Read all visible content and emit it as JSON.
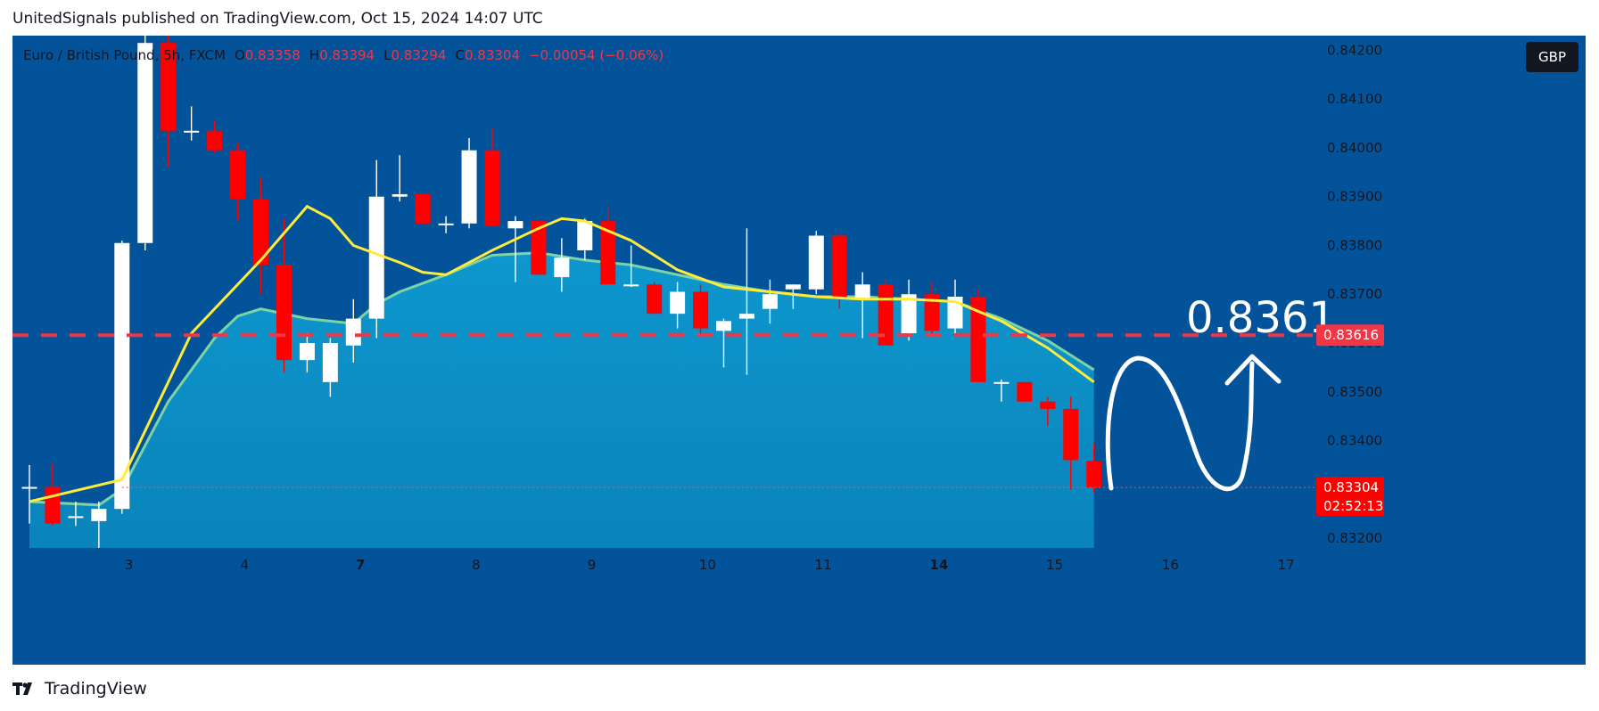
{
  "header": {
    "published_line": "UnitedSignals published on TradingView.com, Oct 15, 2024 14:07 UTC"
  },
  "legend": {
    "symbol": "Euro / British Pound, 5h, FXCM",
    "open_label": "O",
    "open_value": "0.83358",
    "high_label": "H",
    "high_value": "0.83394",
    "low_label": "L",
    "low_value": "0.83294",
    "close_label": "C",
    "close_value": "0.83304",
    "change": "−0.00054 (−0.06%)"
  },
  "currency_badge": "GBP",
  "annotation": {
    "target_text": "0.8361"
  },
  "price_tags": {
    "level_value": "0.83616",
    "last_value": "0.83304",
    "countdown": "02:52:13"
  },
  "colors": {
    "background": "#02539a",
    "up": "#ffffff",
    "down": "#ff0000",
    "ma_fast": "#ffeb3b",
    "ma_slow": "#7dd3a3",
    "fill_area": "#0a8bc0",
    "level_line": "#f23645"
  },
  "footer": {
    "brand": "TradingView",
    "logo_icon": "tradingview-logo-icon"
  },
  "chart_data": {
    "type": "candlestick",
    "ylim": [
      0.8318,
      0.8423
    ],
    "yticks": [
      0.832,
      0.833,
      0.834,
      0.835,
      0.836,
      0.837,
      0.838,
      0.839,
      0.84,
      0.841,
      0.842
    ],
    "ytick_labels": [
      "0.83200",
      "0.83300",
      "0.83400",
      "0.83500",
      "0.83600",
      "0.83700",
      "0.83800",
      "0.83900",
      "0.84000",
      "0.84100",
      "0.84200"
    ],
    "xticks": [
      {
        "label": "3",
        "index": 4.3,
        "bold": false
      },
      {
        "label": "4",
        "index": 9.3,
        "bold": false
      },
      {
        "label": "7",
        "index": 14.3,
        "bold": true
      },
      {
        "label": "8",
        "index": 19.3,
        "bold": false
      },
      {
        "label": "9",
        "index": 24.3,
        "bold": false
      },
      {
        "label": "10",
        "index": 29.3,
        "bold": false
      },
      {
        "label": "11",
        "index": 34.3,
        "bold": false
      },
      {
        "label": "14",
        "index": 39.3,
        "bold": true
      },
      {
        "label": "15",
        "index": 44.3,
        "bold": false
      },
      {
        "label": "16",
        "index": 49.3,
        "bold": false
      },
      {
        "label": "17",
        "index": 54.3,
        "bold": false
      }
    ],
    "candles": [
      {
        "o": 0.83305,
        "h": 0.8335,
        "l": 0.8323,
        "c": 0.83305
      },
      {
        "o": 0.83305,
        "h": 0.83355,
        "l": 0.83225,
        "c": 0.8323
      },
      {
        "o": 0.83245,
        "h": 0.83275,
        "l": 0.83225,
        "c": 0.83245
      },
      {
        "o": 0.83235,
        "h": 0.83275,
        "l": 0.8318,
        "c": 0.8326
      },
      {
        "o": 0.8326,
        "h": 0.8381,
        "l": 0.8325,
        "c": 0.83805
      },
      {
        "o": 0.83805,
        "h": 0.8427,
        "l": 0.8379,
        "c": 0.84215
      },
      {
        "o": 0.84215,
        "h": 0.8425,
        "l": 0.8396,
        "c": 0.84035
      },
      {
        "o": 0.84035,
        "h": 0.84085,
        "l": 0.84015,
        "c": 0.84035
      },
      {
        "o": 0.84035,
        "h": 0.84055,
        "l": 0.8399,
        "c": 0.83995
      },
      {
        "o": 0.83995,
        "h": 0.8401,
        "l": 0.8385,
        "c": 0.83895
      },
      {
        "o": 0.83895,
        "h": 0.8394,
        "l": 0.837,
        "c": 0.8376
      },
      {
        "o": 0.8376,
        "h": 0.83855,
        "l": 0.8354,
        "c": 0.83565
      },
      {
        "o": 0.83565,
        "h": 0.8362,
        "l": 0.8354,
        "c": 0.836
      },
      {
        "o": 0.8352,
        "h": 0.8361,
        "l": 0.8349,
        "c": 0.836
      },
      {
        "o": 0.83595,
        "h": 0.8369,
        "l": 0.8356,
        "c": 0.8365
      },
      {
        "o": 0.8365,
        "h": 0.83975,
        "l": 0.8361,
        "c": 0.839
      },
      {
        "o": 0.839,
        "h": 0.83985,
        "l": 0.8389,
        "c": 0.83905
      },
      {
        "o": 0.83905,
        "h": 0.83905,
        "l": 0.83845,
        "c": 0.83845
      },
      {
        "o": 0.83845,
        "h": 0.8386,
        "l": 0.83825,
        "c": 0.83845
      },
      {
        "o": 0.83845,
        "h": 0.8402,
        "l": 0.83835,
        "c": 0.83995
      },
      {
        "o": 0.83995,
        "h": 0.8404,
        "l": 0.83835,
        "c": 0.8384
      },
      {
        "o": 0.83835,
        "h": 0.8386,
        "l": 0.83725,
        "c": 0.8385
      },
      {
        "o": 0.8385,
        "h": 0.8385,
        "l": 0.8374,
        "c": 0.8374
      },
      {
        "o": 0.83735,
        "h": 0.83815,
        "l": 0.83705,
        "c": 0.83775
      },
      {
        "o": 0.8379,
        "h": 0.83855,
        "l": 0.8377,
        "c": 0.8385
      },
      {
        "o": 0.8385,
        "h": 0.8388,
        "l": 0.8372,
        "c": 0.8372
      },
      {
        "o": 0.8372,
        "h": 0.838,
        "l": 0.83715,
        "c": 0.8372
      },
      {
        "o": 0.8372,
        "h": 0.83725,
        "l": 0.8366,
        "c": 0.8366
      },
      {
        "o": 0.8366,
        "h": 0.83725,
        "l": 0.8363,
        "c": 0.83705
      },
      {
        "o": 0.83705,
        "h": 0.8372,
        "l": 0.8362,
        "c": 0.8363
      },
      {
        "o": 0.83625,
        "h": 0.8365,
        "l": 0.8355,
        "c": 0.83645
      },
      {
        "o": 0.8365,
        "h": 0.83835,
        "l": 0.83535,
        "c": 0.8366
      },
      {
        "o": 0.8367,
        "h": 0.8373,
        "l": 0.8364,
        "c": 0.837
      },
      {
        "o": 0.8371,
        "h": 0.8372,
        "l": 0.8367,
        "c": 0.8372
      },
      {
        "o": 0.8371,
        "h": 0.8383,
        "l": 0.837,
        "c": 0.8382
      },
      {
        "o": 0.8382,
        "h": 0.83825,
        "l": 0.8367,
        "c": 0.8369
      },
      {
        "o": 0.8369,
        "h": 0.83745,
        "l": 0.8361,
        "c": 0.8372
      },
      {
        "o": 0.8372,
        "h": 0.8373,
        "l": 0.83595,
        "c": 0.83595
      },
      {
        "o": 0.8362,
        "h": 0.8373,
        "l": 0.83605,
        "c": 0.837
      },
      {
        "o": 0.837,
        "h": 0.83725,
        "l": 0.83615,
        "c": 0.83625
      },
      {
        "o": 0.8363,
        "h": 0.8373,
        "l": 0.8362,
        "c": 0.83695
      },
      {
        "o": 0.83695,
        "h": 0.8371,
        "l": 0.8352,
        "c": 0.8352
      },
      {
        "o": 0.8352,
        "h": 0.83525,
        "l": 0.8348,
        "c": 0.8352
      },
      {
        "o": 0.8352,
        "h": 0.8352,
        "l": 0.8348,
        "c": 0.8348
      },
      {
        "o": 0.8348,
        "h": 0.8349,
        "l": 0.8343,
        "c": 0.83465
      },
      {
        "o": 0.83465,
        "h": 0.8349,
        "l": 0.833,
        "c": 0.8336
      },
      {
        "o": 0.83358,
        "h": 0.83394,
        "l": 0.83294,
        "c": 0.83304
      }
    ],
    "ma_fast": [
      {
        "i": 0,
        "v": 0.83275
      },
      {
        "i": 4,
        "v": 0.8332
      },
      {
        "i": 7,
        "v": 0.8362
      },
      {
        "i": 10,
        "v": 0.8377
      },
      {
        "i": 12,
        "v": 0.8388
      },
      {
        "i": 13,
        "v": 0.83855
      },
      {
        "i": 14,
        "v": 0.838
      },
      {
        "i": 16,
        "v": 0.83765
      },
      {
        "i": 17,
        "v": 0.83745
      },
      {
        "i": 18,
        "v": 0.8374
      },
      {
        "i": 20,
        "v": 0.8379
      },
      {
        "i": 22,
        "v": 0.83835
      },
      {
        "i": 23,
        "v": 0.83855
      },
      {
        "i": 24,
        "v": 0.8385
      },
      {
        "i": 26,
        "v": 0.8381
      },
      {
        "i": 28,
        "v": 0.8375
      },
      {
        "i": 30,
        "v": 0.83715
      },
      {
        "i": 32,
        "v": 0.83705
      },
      {
        "i": 34,
        "v": 0.83695
      },
      {
        "i": 36,
        "v": 0.8369
      },
      {
        "i": 38,
        "v": 0.8369
      },
      {
        "i": 40,
        "v": 0.83685
      },
      {
        "i": 42,
        "v": 0.83645
      },
      {
        "i": 44,
        "v": 0.8359
      },
      {
        "i": 46,
        "v": 0.8352
      }
    ],
    "ma_slow": [
      {
        "i": 0,
        "v": 0.83275
      },
      {
        "i": 3,
        "v": 0.83268
      },
      {
        "i": 4,
        "v": 0.833
      },
      {
        "i": 6,
        "v": 0.8348
      },
      {
        "i": 8,
        "v": 0.8361
      },
      {
        "i": 9,
        "v": 0.83655
      },
      {
        "i": 10,
        "v": 0.8367
      },
      {
        "i": 12,
        "v": 0.8365
      },
      {
        "i": 14,
        "v": 0.8364
      },
      {
        "i": 15,
        "v": 0.8368
      },
      {
        "i": 16,
        "v": 0.83705
      },
      {
        "i": 18,
        "v": 0.8374
      },
      {
        "i": 20,
        "v": 0.8378
      },
      {
        "i": 22,
        "v": 0.83785
      },
      {
        "i": 24,
        "v": 0.8377
      },
      {
        "i": 26,
        "v": 0.8376
      },
      {
        "i": 28,
        "v": 0.8374
      },
      {
        "i": 30,
        "v": 0.8372
      },
      {
        "i": 32,
        "v": 0.83705
      },
      {
        "i": 34,
        "v": 0.83695
      },
      {
        "i": 36,
        "v": 0.83695
      },
      {
        "i": 38,
        "v": 0.8369
      },
      {
        "i": 40,
        "v": 0.83685
      },
      {
        "i": 42,
        "v": 0.8365
      },
      {
        "i": 44,
        "v": 0.83605
      },
      {
        "i": 46,
        "v": 0.83545
      }
    ],
    "horizontal_level": 0.83616,
    "last_price": 0.83304
  }
}
